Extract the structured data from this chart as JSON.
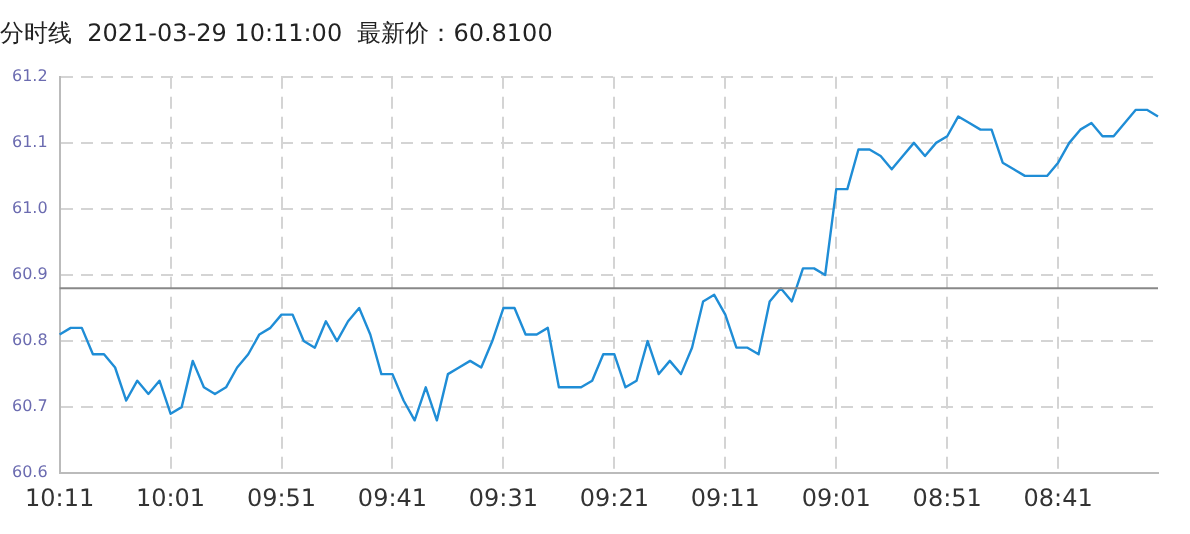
{
  "chart_data": {
    "type": "line",
    "title": "分时线  2021-03-29 10:11:00  最新价：60.8100",
    "categories": [
      "10:11",
      null,
      null,
      null,
      null,
      null,
      null,
      null,
      null,
      null,
      "10:01",
      null,
      null,
      null,
      null,
      null,
      null,
      null,
      null,
      null,
      "09:51",
      null,
      null,
      null,
      null,
      null,
      null,
      null,
      null,
      null,
      "09:41",
      null,
      null,
      null,
      null,
      null,
      null,
      null,
      null,
      null,
      "09:31",
      null,
      null,
      null,
      null,
      null,
      null,
      null,
      null,
      null,
      "09:21",
      null,
      null,
      null,
      null,
      null,
      null,
      null,
      null,
      null,
      "09:11",
      null,
      null,
      null,
      null,
      null,
      null,
      null,
      null,
      null,
      "09:01",
      null,
      null,
      null,
      null,
      null,
      null,
      null,
      null,
      null,
      "08:51",
      null,
      null,
      null,
      null,
      null,
      null,
      null,
      null,
      null,
      "08:41",
      null,
      null,
      null,
      null,
      null,
      null,
      null,
      null,
      null
    ],
    "series": [
      {
        "color": "#1f8dd6",
        "values": [
          60.81,
          60.82,
          60.82,
          60.78,
          60.78,
          60.76,
          60.71,
          60.74,
          60.72,
          60.74,
          60.69,
          60.7,
          60.77,
          60.73,
          60.72,
          60.73,
          60.76,
          60.78,
          60.81,
          60.82,
          60.84,
          60.84,
          60.8,
          60.79,
          60.83,
          60.8,
          60.83,
          60.85,
          60.81,
          60.75,
          60.75,
          60.71,
          60.68,
          60.73,
          60.68,
          60.75,
          60.76,
          60.77,
          60.76,
          60.8,
          60.85,
          60.85,
          60.81,
          60.81,
          60.82,
          60.73,
          60.73,
          60.73,
          60.74,
          60.78,
          60.78,
          60.73,
          60.74,
          60.8,
          60.75,
          60.77,
          60.75,
          60.79,
          60.86,
          60.87,
          60.84,
          60.79,
          60.79,
          60.78,
          60.86,
          60.88,
          60.86,
          60.91,
          60.91,
          60.9,
          61.03,
          61.03,
          61.09,
          61.09,
          61.08,
          61.06,
          61.08,
          61.1,
          61.08,
          61.1,
          61.11,
          61.14,
          61.13,
          61.12,
          61.12,
          61.07,
          61.06,
          61.05,
          61.05,
          61.05,
          61.07,
          61.1,
          61.12,
          61.13,
          61.11,
          61.11,
          61.13,
          61.15,
          61.15,
          61.14
        ]
      }
    ],
    "ylim": [
      60.6,
      61.2
    ],
    "yticks": [
      60.6,
      60.7,
      60.8,
      60.9,
      {
        "value": 61,
        "label": "61.0"
      },
      61.1,
      61.2
    ],
    "ref_lines": [
      {
        "axis": "y",
        "value": 60.88,
        "color": "#888888"
      }
    ],
    "grid": true,
    "legend": false,
    "marker": "none",
    "line_style": "solid"
  }
}
